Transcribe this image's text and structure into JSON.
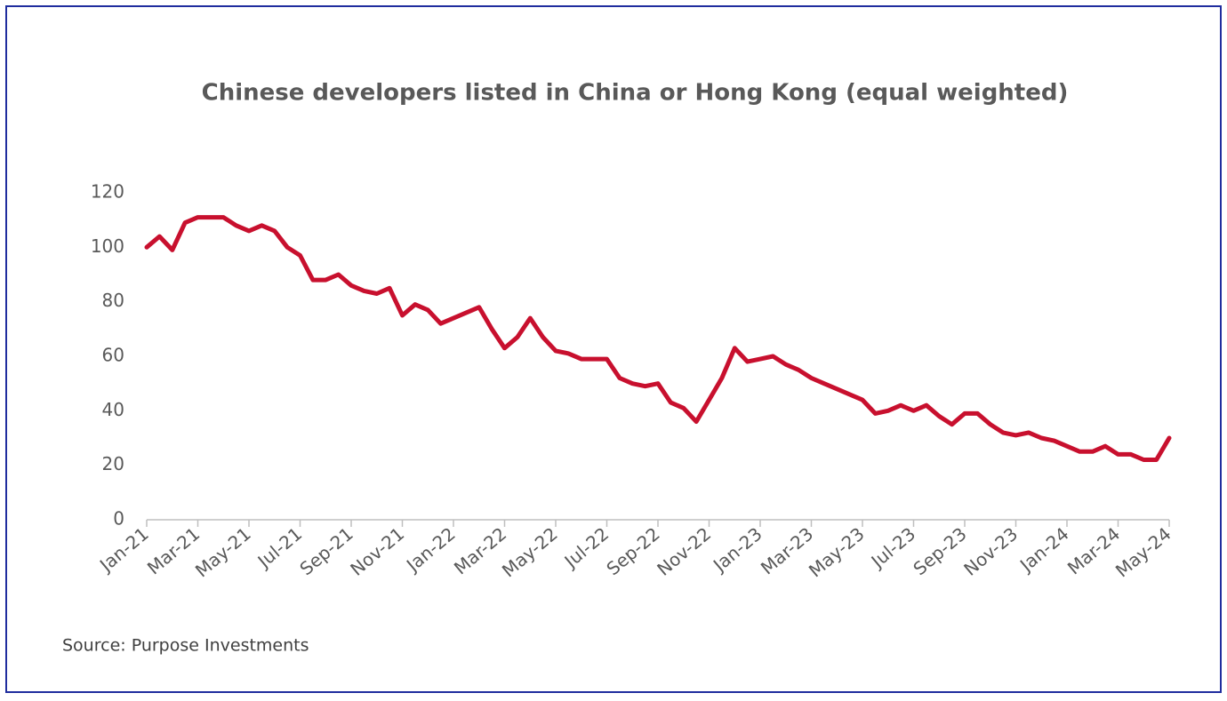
{
  "chart_data": {
    "type": "line",
    "title": "Chinese developers listed in China or Hong Kong (equal weighted)",
    "source": "Source: Purpose Investments",
    "categories": [
      "Jan-21",
      null,
      null,
      null,
      "Mar-21",
      null,
      null,
      null,
      "May-21",
      null,
      null,
      null,
      "Jul-21",
      null,
      null,
      null,
      "Sep-21",
      null,
      null,
      null,
      "Nov-21",
      null,
      null,
      null,
      "Jan-22",
      null,
      null,
      null,
      "Mar-22",
      null,
      null,
      null,
      "May-22",
      null,
      null,
      null,
      "Jul-22",
      null,
      null,
      null,
      "Sep-22",
      null,
      null,
      null,
      "Nov-22",
      null,
      null,
      null,
      "Jan-23",
      null,
      null,
      null,
      "Mar-23",
      null,
      null,
      null,
      "May-23",
      null,
      null,
      null,
      "Jul-23",
      null,
      null,
      null,
      "Sep-23",
      null,
      null,
      null,
      "Nov-23",
      null,
      null,
      null,
      "Jan-24",
      null,
      null,
      null,
      "Mar-24",
      null,
      null,
      null,
      "May-24"
    ],
    "series": [
      {
        "name": "Chinese developers",
        "color": "#c8102e",
        "values": [
          100,
          104,
          99,
          109,
          111,
          111,
          111,
          108,
          106,
          108,
          106,
          100,
          97,
          88,
          88,
          90,
          86,
          84,
          83,
          85,
          75,
          79,
          77,
          72,
          74,
          76,
          78,
          70,
          63,
          67,
          74,
          67,
          62,
          61,
          59,
          59,
          59,
          52,
          50,
          49,
          50,
          43,
          41,
          36,
          44,
          52,
          63,
          58,
          59,
          60,
          57,
          55,
          52,
          50,
          48,
          46,
          44,
          39,
          40,
          42,
          40,
          42,
          38,
          35,
          39,
          39,
          35,
          32,
          31,
          32,
          30,
          29,
          27,
          25,
          25,
          27,
          24,
          24,
          22,
          22,
          30
        ]
      }
    ],
    "ylim": [
      0,
      120
    ],
    "yticks": [
      0,
      20,
      40,
      60,
      80,
      100,
      120
    ],
    "grid": false
  }
}
